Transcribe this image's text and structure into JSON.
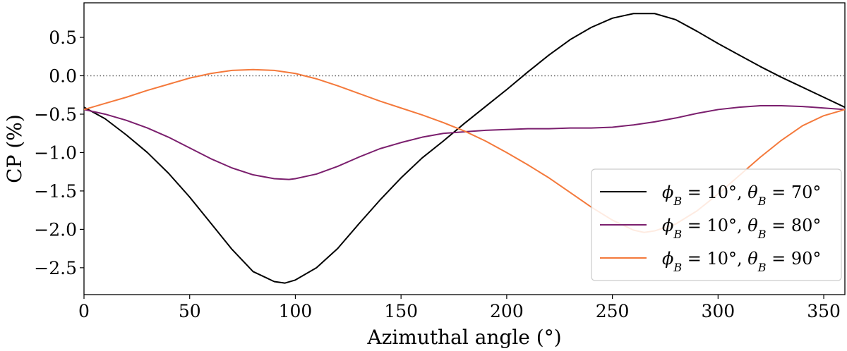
{
  "chart_data": {
    "type": "line",
    "xlabel": "Azimuthal angle (°)",
    "ylabel": "CP (%)",
    "xlim": [
      0,
      360
    ],
    "ylim": [
      -2.85,
      0.95
    ],
    "xticks": [
      0,
      50,
      100,
      150,
      200,
      250,
      300,
      350
    ],
    "yticks": [
      0.5,
      0.0,
      -0.5,
      -1.0,
      -1.5,
      -2.0,
      -2.5
    ],
    "xtick_labels": [
      "0",
      "50",
      "100",
      "150",
      "200",
      "250",
      "300",
      "350"
    ],
    "ytick_labels": [
      "0.5",
      "0.0",
      "−0.5",
      "−1.0",
      "−1.5",
      "−2.0",
      "−2.5"
    ],
    "reference_line": {
      "y": 0.0,
      "style": "dotted",
      "color": "#666666"
    },
    "legend_position": "lower-right",
    "series": [
      {
        "name": "φB = 10°, θB = 70°",
        "legend_parts": [
          "ϕ",
          "B",
          " = 10°, ",
          "θ",
          "B",
          " = 70°"
        ],
        "color": "#000000",
        "x": [
          0,
          10,
          20,
          30,
          40,
          50,
          60,
          70,
          80,
          90,
          95,
          100,
          110,
          120,
          130,
          140,
          150,
          160,
          170,
          180,
          190,
          200,
          210,
          220,
          230,
          240,
          250,
          260,
          270,
          280,
          290,
          300,
          310,
          320,
          330,
          340,
          350,
          360
        ],
        "y": [
          -0.41,
          -0.56,
          -0.77,
          -1.0,
          -1.27,
          -1.58,
          -1.92,
          -2.26,
          -2.55,
          -2.68,
          -2.7,
          -2.66,
          -2.5,
          -2.25,
          -1.93,
          -1.62,
          -1.33,
          -1.07,
          -0.85,
          -0.62,
          -0.4,
          -0.18,
          0.05,
          0.27,
          0.47,
          0.63,
          0.75,
          0.81,
          0.81,
          0.73,
          0.58,
          0.42,
          0.27,
          0.12,
          -0.02,
          -0.15,
          -0.28,
          -0.41
        ]
      },
      {
        "name": "φB = 10°, θB = 80°",
        "legend_parts": [
          "ϕ",
          "B",
          " = 10°, ",
          "θ",
          "B",
          " = 80°"
        ],
        "color": "#7b1f6e",
        "x": [
          0,
          10,
          20,
          30,
          40,
          50,
          60,
          70,
          80,
          90,
          97,
          100,
          110,
          120,
          130,
          140,
          150,
          160,
          170,
          180,
          190,
          200,
          210,
          220,
          230,
          240,
          250,
          260,
          270,
          280,
          290,
          300,
          310,
          320,
          330,
          340,
          350,
          360
        ],
        "y": [
          -0.44,
          -0.5,
          -0.58,
          -0.68,
          -0.8,
          -0.94,
          -1.08,
          -1.2,
          -1.29,
          -1.34,
          -1.35,
          -1.34,
          -1.28,
          -1.18,
          -1.06,
          -0.95,
          -0.87,
          -0.8,
          -0.75,
          -0.73,
          -0.71,
          -0.7,
          -0.69,
          -0.69,
          -0.68,
          -0.68,
          -0.67,
          -0.64,
          -0.6,
          -0.55,
          -0.49,
          -0.44,
          -0.41,
          -0.39,
          -0.39,
          -0.4,
          -0.42,
          -0.44
        ]
      },
      {
        "name": "φB = 10°, θB = 90°",
        "legend_parts": [
          "ϕ",
          "B",
          " = 10°, ",
          "θ",
          "B",
          " = 90°"
        ],
        "color": "#f4793b",
        "x": [
          0,
          10,
          20,
          30,
          40,
          50,
          60,
          70,
          80,
          90,
          100,
          110,
          120,
          130,
          140,
          150,
          160,
          170,
          180,
          190,
          200,
          210,
          220,
          230,
          240,
          250,
          260,
          265,
          270,
          280,
          290,
          300,
          310,
          320,
          330,
          340,
          350,
          360
        ],
        "y": [
          -0.44,
          -0.36,
          -0.28,
          -0.19,
          -0.11,
          -0.03,
          0.03,
          0.07,
          0.08,
          0.07,
          0.03,
          -0.04,
          -0.13,
          -0.23,
          -0.33,
          -0.42,
          -0.51,
          -0.61,
          -0.72,
          -0.85,
          -1.0,
          -1.16,
          -1.33,
          -1.52,
          -1.71,
          -1.88,
          -2.01,
          -2.04,
          -2.02,
          -1.93,
          -1.76,
          -1.54,
          -1.3,
          -1.06,
          -0.84,
          -0.65,
          -0.52,
          -0.44
        ]
      }
    ]
  }
}
